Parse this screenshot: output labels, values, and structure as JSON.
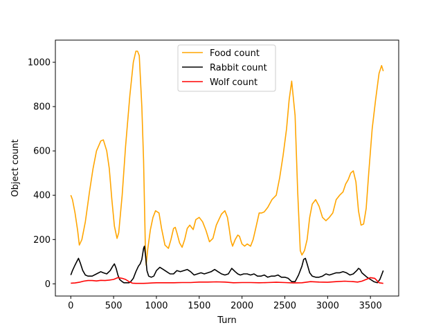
{
  "chart_data": {
    "type": "line",
    "title": "",
    "xlabel": "Turn",
    "ylabel": "Object count",
    "xlim": [
      -180,
      3830
    ],
    "ylim": [
      -55,
      1100
    ],
    "xticks": [
      0,
      500,
      1000,
      1500,
      2000,
      2500,
      3000,
      3500
    ],
    "yticks": [
      0,
      200,
      400,
      600,
      800,
      1000
    ],
    "grid": false,
    "legend_position": "upper center",
    "series": [
      {
        "name": "Food count",
        "color": "#ffa500",
        "x": [
          0,
          20,
          50,
          80,
          100,
          130,
          170,
          220,
          260,
          300,
          350,
          380,
          420,
          450,
          480,
          510,
          540,
          560,
          600,
          640,
          690,
          730,
          760,
          780,
          800,
          830,
          850,
          870,
          880,
          900,
          930,
          960,
          990,
          1030,
          1060,
          1100,
          1140,
          1170,
          1200,
          1220,
          1240,
          1270,
          1300,
          1330,
          1360,
          1390,
          1430,
          1460,
          1500,
          1540,
          1580,
          1620,
          1660,
          1700,
          1730,
          1760,
          1800,
          1830,
          1850,
          1870,
          1890,
          1920,
          1950,
          1970,
          2000,
          2030,
          2060,
          2100,
          2130,
          2160,
          2200,
          2230,
          2260,
          2300,
          2350,
          2400,
          2440,
          2480,
          2520,
          2550,
          2580,
          2620,
          2650,
          2680,
          2700,
          2730,
          2760,
          2790,
          2820,
          2860,
          2900,
          2940,
          2980,
          3020,
          3060,
          3100,
          3140,
          3180,
          3210,
          3240,
          3270,
          3300,
          3330,
          3360,
          3390,
          3420,
          3450,
          3480,
          3520,
          3560,
          3600,
          3630,
          3650
        ],
        "y": [
          400,
          380,
          320,
          240,
          175,
          200,
          280,
          420,
          520,
          600,
          645,
          650,
          600,
          520,
          380,
          260,
          205,
          230,
          400,
          620,
          850,
          1000,
          1050,
          1050,
          1030,
          800,
          560,
          180,
          85,
          160,
          245,
          300,
          330,
          320,
          250,
          175,
          160,
          200,
          250,
          255,
          230,
          185,
          165,
          200,
          250,
          265,
          245,
          290,
          300,
          280,
          240,
          190,
          205,
          265,
          290,
          315,
          330,
          300,
          250,
          195,
          170,
          200,
          220,
          215,
          180,
          170,
          180,
          170,
          200,
          250,
          320,
          320,
          325,
          345,
          380,
          400,
          480,
          580,
          700,
          830,
          915,
          760,
          420,
          150,
          130,
          150,
          200,
          300,
          360,
          380,
          350,
          300,
          285,
          300,
          320,
          380,
          400,
          415,
          450,
          470,
          500,
          510,
          460,
          330,
          265,
          270,
          340,
          500,
          700,
          830,
          950,
          985,
          960
        ]
      },
      {
        "name": "Rabbit count",
        "color": "#000000",
        "x": [
          0,
          20,
          50,
          70,
          90,
          110,
          140,
          170,
          200,
          250,
          300,
          350,
          380,
          420,
          460,
          490,
          510,
          530,
          550,
          570,
          600,
          620,
          650,
          680,
          700,
          730,
          760,
          790,
          810,
          830,
          850,
          860,
          875,
          890,
          910,
          940,
          970,
          1000,
          1040,
          1080,
          1120,
          1160,
          1200,
          1240,
          1280,
          1320,
          1360,
          1400,
          1440,
          1480,
          1520,
          1560,
          1600,
          1640,
          1680,
          1720,
          1760,
          1800,
          1840,
          1880,
          1920,
          1950,
          1980,
          2020,
          2060,
          2100,
          2140,
          2180,
          2220,
          2260,
          2300,
          2340,
          2380,
          2420,
          2460,
          2500,
          2540,
          2580,
          2620,
          2660,
          2700,
          2720,
          2740,
          2760,
          2790,
          2820,
          2860,
          2900,
          2940,
          2980,
          3020,
          3060,
          3100,
          3140,
          3180,
          3220,
          3260,
          3300,
          3340,
          3360,
          3380,
          3400,
          3430,
          3460,
          3500,
          3540,
          3580,
          3610,
          3630,
          3650
        ],
        "y": [
          40,
          60,
          85,
          100,
          115,
          95,
          60,
          40,
          35,
          35,
          45,
          55,
          50,
          45,
          60,
          80,
          90,
          70,
          40,
          20,
          10,
          5,
          5,
          5,
          10,
          25,
          55,
          80,
          90,
          110,
          160,
          170,
          120,
          60,
          35,
          30,
          35,
          60,
          75,
          65,
          55,
          45,
          45,
          60,
          55,
          60,
          65,
          55,
          40,
          45,
          50,
          45,
          50,
          55,
          65,
          55,
          45,
          40,
          45,
          70,
          55,
          45,
          40,
          45,
          45,
          40,
          45,
          35,
          35,
          40,
          30,
          35,
          35,
          40,
          30,
          30,
          25,
          10,
          10,
          40,
          80,
          110,
          115,
          90,
          50,
          35,
          30,
          30,
          35,
          45,
          40,
          45,
          50,
          50,
          55,
          50,
          40,
          45,
          60,
          70,
          65,
          50,
          40,
          30,
          20,
          10,
          5,
          20,
          40,
          60
        ]
      },
      {
        "name": "Wolf count",
        "color": "#ff0000",
        "x": [
          0,
          50,
          100,
          150,
          200,
          250,
          300,
          350,
          400,
          450,
          500,
          550,
          600,
          640,
          680,
          720,
          760,
          800,
          850,
          900,
          950,
          1000,
          1100,
          1200,
          1300,
          1400,
          1500,
          1600,
          1700,
          1800,
          1900,
          2000,
          2100,
          2200,
          2300,
          2400,
          2500,
          2600,
          2700,
          2800,
          2900,
          3000,
          3100,
          3200,
          3300,
          3350,
          3400,
          3450,
          3500,
          3550,
          3600,
          3650
        ],
        "y": [
          3,
          4,
          7,
          12,
          15,
          15,
          13,
          16,
          15,
          17,
          20,
          28,
          25,
          20,
          10,
          3,
          2,
          2,
          2,
          3,
          4,
          5,
          5,
          5,
          6,
          6,
          8,
          8,
          9,
          8,
          5,
          6,
          6,
          5,
          6,
          7,
          6,
          4,
          5,
          10,
          8,
          7,
          10,
          12,
          10,
          8,
          12,
          20,
          28,
          25,
          5,
          2
        ]
      }
    ]
  }
}
